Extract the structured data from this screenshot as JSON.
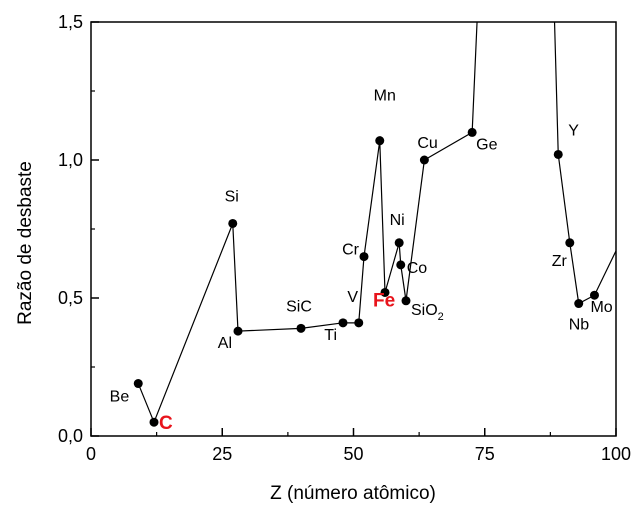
{
  "chart_data": {
    "type": "line",
    "title": "",
    "xlabel": "Z (número atômico)",
    "ylabel": "Razão de desbaste",
    "xlim": [
      0,
      100
    ],
    "ylim": [
      0,
      1.5
    ],
    "xticks": [
      0,
      25,
      50,
      75,
      100
    ],
    "yticks": [
      0.0,
      0.5,
      1.0,
      1.5
    ],
    "xtick_labels": [
      "0",
      "25",
      "50",
      "75",
      "100"
    ],
    "ytick_labels": [
      "0,0",
      "0,5",
      "1,0",
      "1,5"
    ],
    "grid": false,
    "legend": "none",
    "line_color": "#000000",
    "marker_color": "#000000",
    "highlight_color": "#e8141c",
    "series": [
      {
        "points": [
          {
            "x": 9,
            "y": 0.19,
            "label": "Be"
          },
          {
            "x": 12,
            "y": 0.05,
            "label": "C",
            "highlight": true
          },
          {
            "x": 27,
            "y": 0.77,
            "label": "Si"
          },
          {
            "x": 28,
            "y": 0.38,
            "label": "Al"
          },
          {
            "x": 40,
            "y": 0.39,
            "label": "SiC"
          },
          {
            "x": 48,
            "y": 0.41,
            "label": "Ti"
          },
          {
            "x": 51,
            "y": 0.41,
            "label": "V"
          },
          {
            "x": 52,
            "y": 0.65,
            "label": "Cr"
          },
          {
            "x": 55,
            "y": 1.07,
            "label": "Mn"
          },
          {
            "x": 56,
            "y": 0.52,
            "label": "Fe",
            "highlight": true
          },
          {
            "x": 58.7,
            "y": 0.7,
            "label": "Ni"
          },
          {
            "x": 59,
            "y": 0.62,
            "label": "Co"
          },
          {
            "x": 60,
            "y": 0.49,
            "label": "SiO",
            "sub": "2"
          },
          {
            "x": 63.5,
            "y": 1.0,
            "label": "Cu"
          },
          {
            "x": 72.6,
            "y": 1.1,
            "label": "Ge"
          },
          {
            "x": 74,
            "y": 1.7,
            "label": ""
          },
          {
            "x": 88,
            "y": 1.7,
            "label": ""
          },
          {
            "x": 89,
            "y": 1.02,
            "label": "Y"
          },
          {
            "x": 91.2,
            "y": 0.7,
            "label": "Zr"
          },
          {
            "x": 92.9,
            "y": 0.48,
            "label": "Nb"
          },
          {
            "x": 95.9,
            "y": 0.51,
            "label": "Mo"
          },
          {
            "x": 101,
            "y": 0.71,
            "label": ""
          }
        ]
      }
    ]
  }
}
